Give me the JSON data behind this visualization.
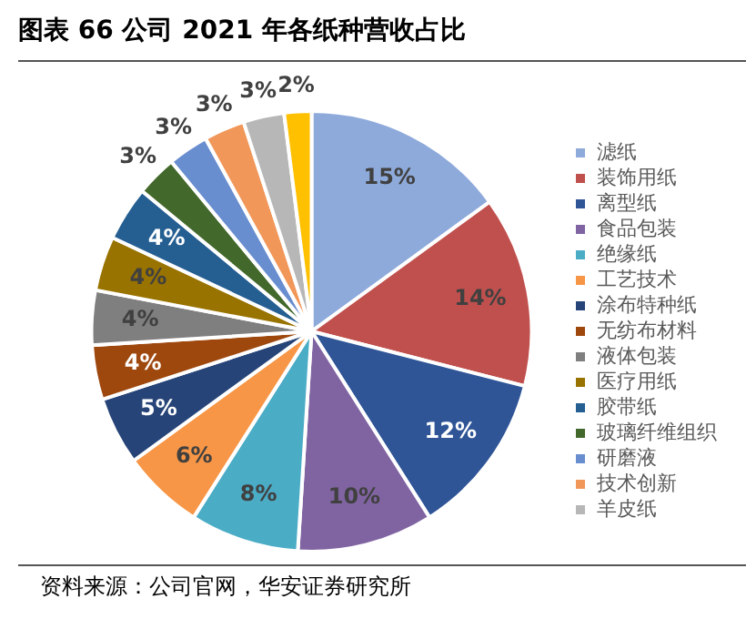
{
  "chart_data": {
    "type": "pie",
    "title": "图表 66  公司 2021 年各纸种营收占比",
    "categories": [
      "滤纸",
      "装饰用纸",
      "离型纸",
      "食品包装",
      "绝缘纸",
      "工艺技术",
      "涂布特种纸",
      "无纺布材料",
      "液体包装",
      "医疗用纸",
      "胶带纸",
      "玻璃纤维组织",
      "研磨液",
      "技术创新",
      "羊皮纸",
      null
    ],
    "values": [
      15,
      14,
      12,
      10,
      8,
      6,
      5,
      4,
      4,
      4,
      4,
      3,
      3,
      3,
      3,
      2
    ],
    "colors": [
      "#8eaadb",
      "#c0504d",
      "#2f5597",
      "#8064a2",
      "#4bacc6",
      "#f79646",
      "#264478",
      "#9e480e",
      "#7f7f7f",
      "#997300",
      "#255e91",
      "#43682b",
      "#698ed0",
      "#f1975a",
      "#b7b7b7",
      "#ffc000"
    ],
    "value_labels": [
      "15%",
      "14%",
      "12%",
      "10%",
      "8%",
      "6%",
      "5%",
      "4%",
      "4%",
      "4%",
      "4%",
      "3%",
      "3%",
      "3%",
      "3%",
      "2%"
    ],
    "legend": "right",
    "annotations": [
      "资料来源：公司官网，华安证券研究所"
    ]
  }
}
